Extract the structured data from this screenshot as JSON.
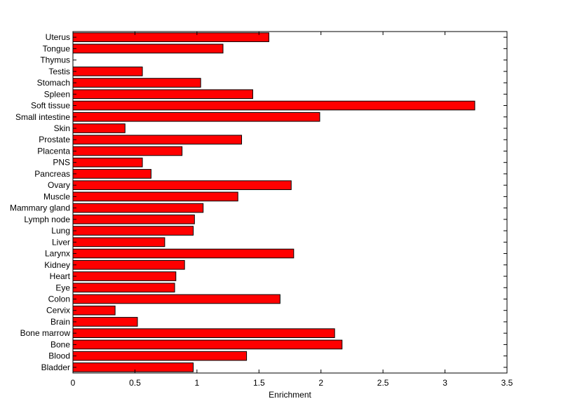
{
  "chart_data": {
    "type": "bar",
    "orientation": "horizontal",
    "title": "",
    "xlabel": "Enrichment",
    "ylabel": "",
    "xlim": [
      0,
      3.5
    ],
    "xticks": [
      0,
      0.5,
      1,
      1.5,
      2,
      2.5,
      3,
      3.5
    ],
    "xtick_labels": [
      "0",
      "0.5",
      "1",
      "1.5",
      "2",
      "2.5",
      "3",
      "3.5"
    ],
    "grid": false,
    "legend": "none",
    "bar_color": "#ff0000",
    "categories": [
      "Uterus",
      "Tongue",
      "Thymus",
      "Testis",
      "Stomach",
      "Spleen",
      "Soft tissue",
      "Small intestine",
      "Skin",
      "Prostate",
      "Placenta",
      "PNS",
      "Pancreas",
      "Ovary",
      "Muscle",
      "Mammary gland",
      "Lymph node",
      "Lung",
      "Liver",
      "Larynx",
      "Kidney",
      "Heart",
      "Eye",
      "Colon",
      "Cervix",
      "Brain",
      "Bone marrow",
      "Bone",
      "Blood",
      "Bladder"
    ],
    "values": [
      1.58,
      1.21,
      0.0,
      0.56,
      1.03,
      1.45,
      3.24,
      1.99,
      0.42,
      1.36,
      0.88,
      0.56,
      0.63,
      1.76,
      1.33,
      1.05,
      0.98,
      0.97,
      0.74,
      1.78,
      0.9,
      0.83,
      0.82,
      1.67,
      0.34,
      0.52,
      2.11,
      2.17,
      1.4,
      0.97
    ]
  }
}
